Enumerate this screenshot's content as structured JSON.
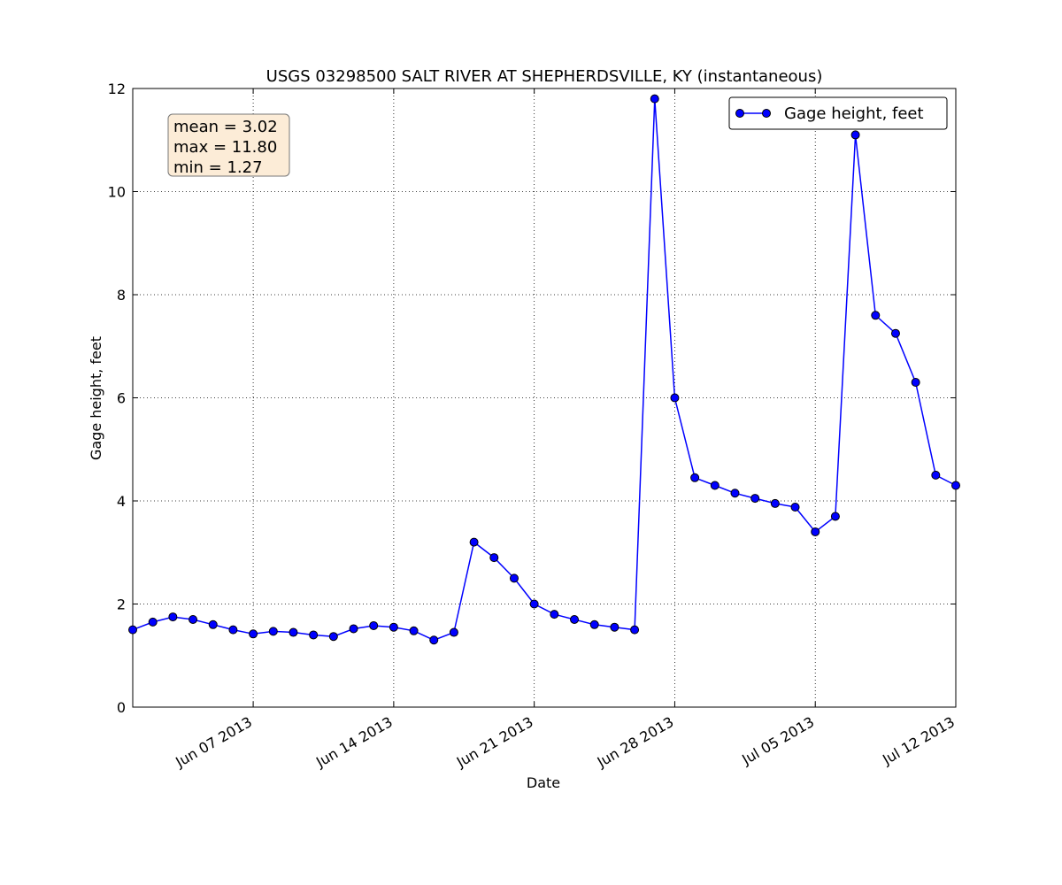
{
  "chart_data": {
    "type": "line",
    "title": "USGS 03298500 SALT RIVER AT SHEPHERDSVILLE, KY (instantaneous)",
    "x_label": "Date",
    "y_label": "Gage height, feet",
    "annotations": [
      "mean = 3.02",
      "max = 11.80",
      "min = 1.27"
    ],
    "x": [
      "2013-06-01",
      "2013-06-02",
      "2013-06-03",
      "2013-06-04",
      "2013-06-05",
      "2013-06-06",
      "2013-06-07",
      "2013-06-08",
      "2013-06-09",
      "2013-06-10",
      "2013-06-11",
      "2013-06-12",
      "2013-06-13",
      "2013-06-14",
      "2013-06-15",
      "2013-06-16",
      "2013-06-17",
      "2013-06-18",
      "2013-06-19",
      "2013-06-20",
      "2013-06-21",
      "2013-06-22",
      "2013-06-23",
      "2013-06-24",
      "2013-06-25",
      "2013-06-26",
      "2013-06-27",
      "2013-06-28",
      "2013-06-29",
      "2013-06-30",
      "2013-07-01",
      "2013-07-02",
      "2013-07-03",
      "2013-07-04",
      "2013-07-05",
      "2013-07-06",
      "2013-07-07",
      "2013-07-08",
      "2013-07-09",
      "2013-07-10",
      "2013-07-11",
      "2013-07-12"
    ],
    "series": [
      {
        "name": "Gage height, feet",
        "color": "#0000ff",
        "values": [
          1.5,
          1.65,
          1.75,
          1.7,
          1.6,
          1.5,
          1.42,
          1.47,
          1.45,
          1.4,
          1.37,
          1.52,
          1.58,
          1.55,
          1.48,
          1.3,
          1.45,
          3.2,
          2.9,
          2.5,
          2.0,
          1.8,
          1.7,
          1.6,
          1.55,
          1.5,
          11.8,
          6.0,
          4.45,
          4.3,
          4.15,
          4.05,
          3.95,
          3.88,
          3.4,
          3.7,
          11.1,
          7.6,
          7.25,
          6.3,
          4.5,
          4.3
        ]
      }
    ],
    "xlim": [
      "2013-06-01",
      "2013-07-12"
    ],
    "xticks": [
      {
        "value": "2013-06-07",
        "label": "Jun 07 2013"
      },
      {
        "value": "2013-06-14",
        "label": "Jun 14 2013"
      },
      {
        "value": "2013-06-21",
        "label": "Jun 21 2013"
      },
      {
        "value": "2013-06-28",
        "label": "Jun 28 2013"
      },
      {
        "value": "2013-07-05",
        "label": "Jul 05 2013"
      },
      {
        "value": "2013-07-12",
        "label": "Jul 12 2013"
      }
    ],
    "ylim": [
      0,
      12
    ],
    "yticks": [
      0,
      2,
      4,
      6,
      8,
      10,
      12
    ],
    "grid": true,
    "legend": "upper right"
  }
}
